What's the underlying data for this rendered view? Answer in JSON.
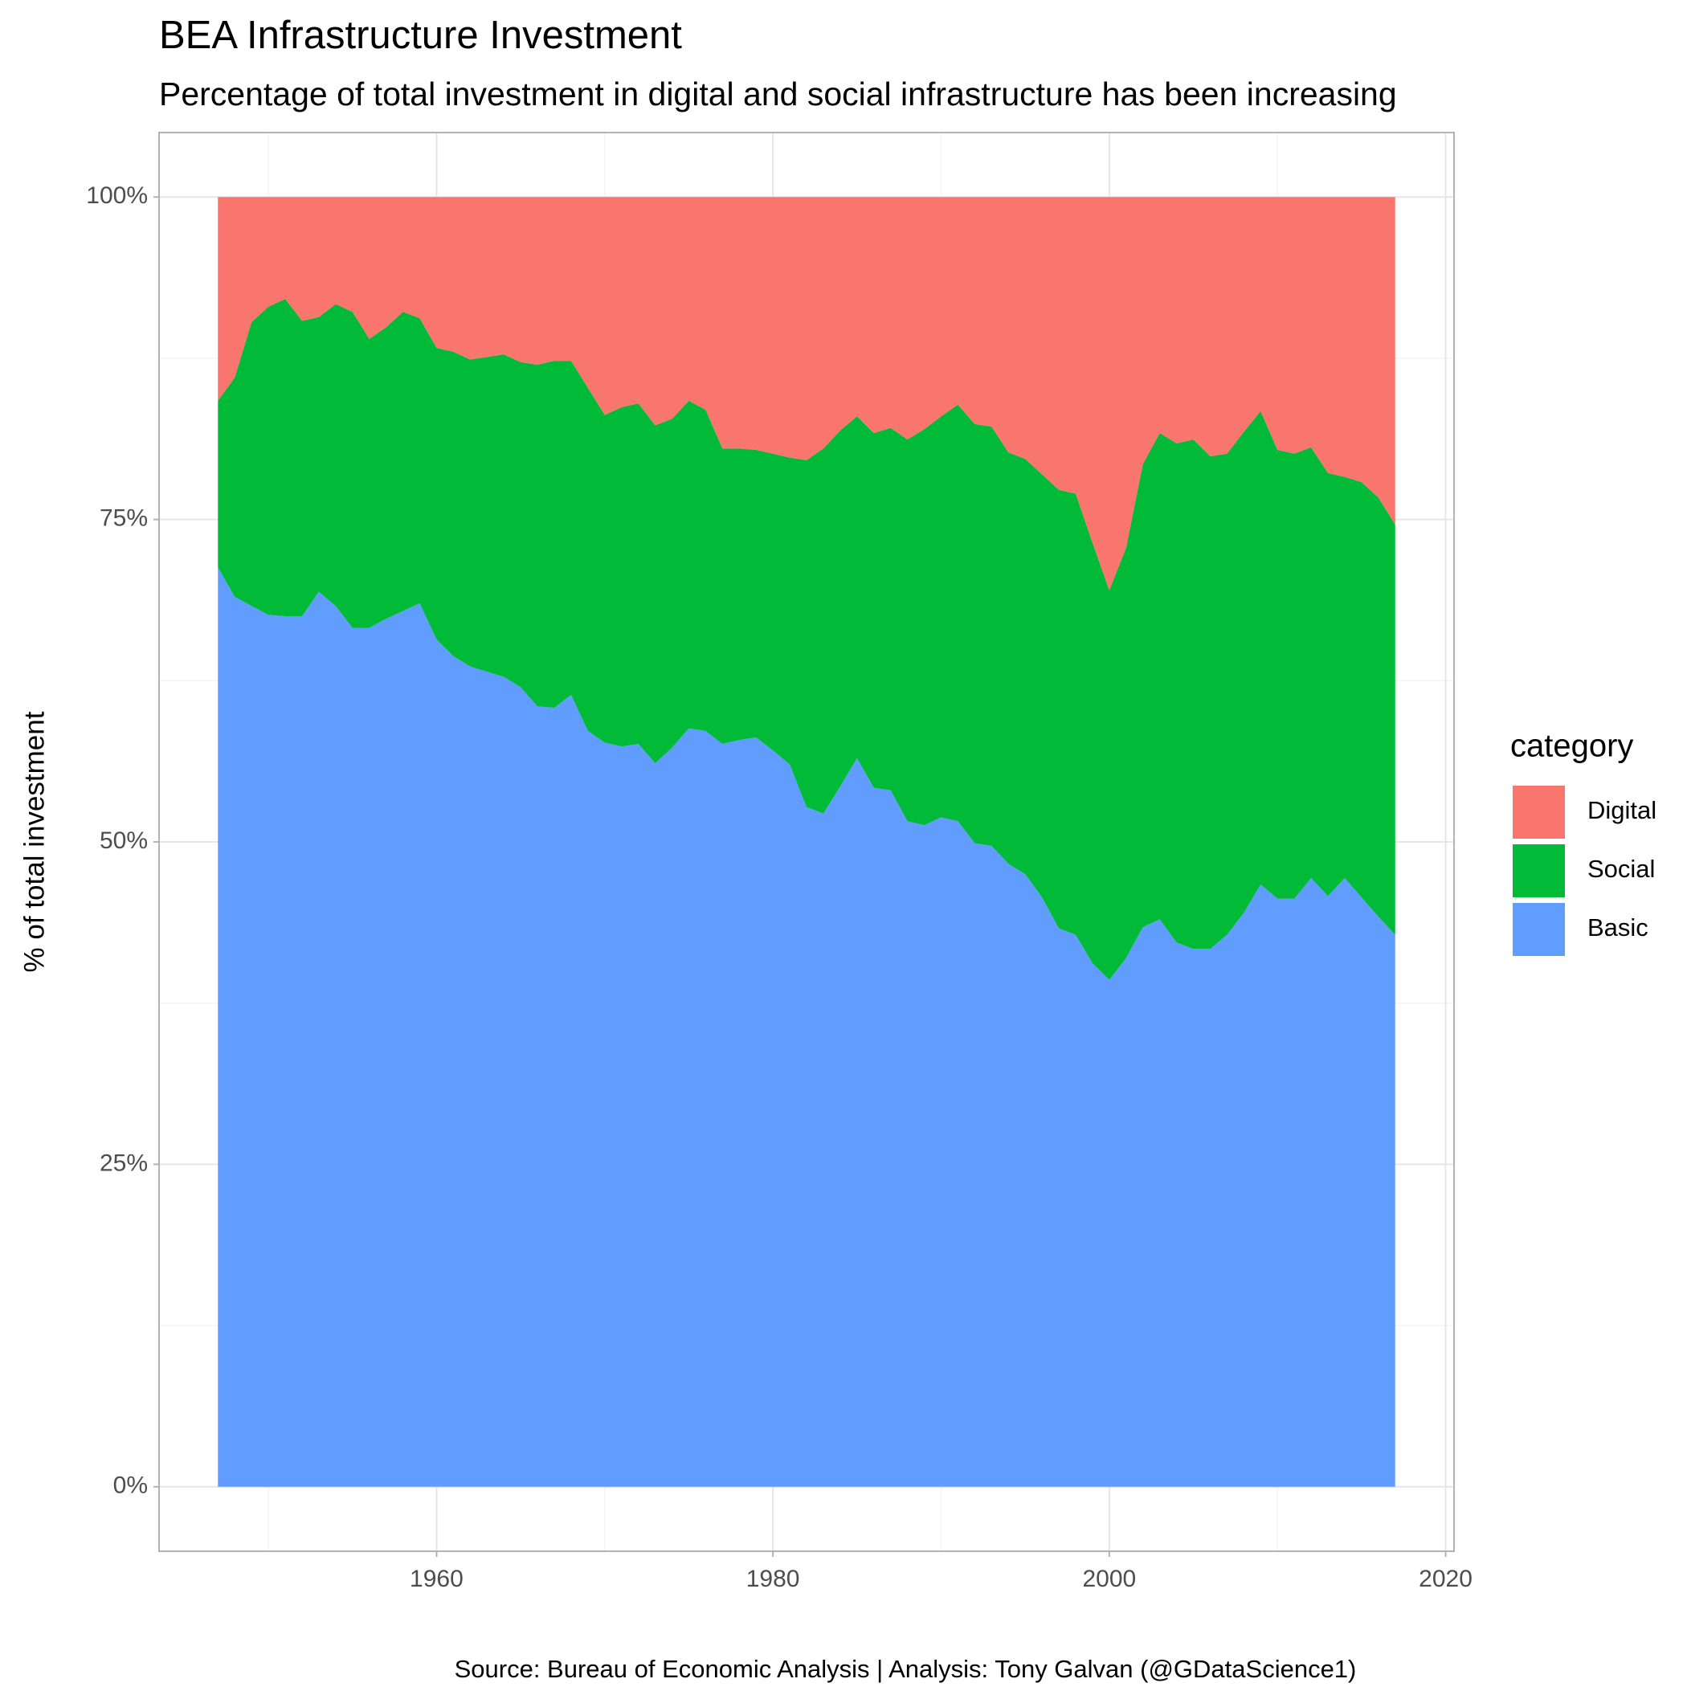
{
  "chart_data": {
    "type": "stacked_area",
    "title": "BEA Infrastructure Investment",
    "subtitle": "Percentage of total investment in digital and social infrastructure has been increasing",
    "y_label": "% of total investment",
    "caption": "Source: Bureau of Economic Analysis  |  Analysis: Tony Galvan (@GDataScience1)",
    "legend_title": "category",
    "legend": "right",
    "grid": true,
    "minor_grid": true,
    "x": [
      1947,
      1948,
      1949,
      1950,
      1951,
      1952,
      1953,
      1954,
      1955,
      1956,
      1957,
      1958,
      1959,
      1960,
      1961,
      1962,
      1963,
      1964,
      1965,
      1966,
      1967,
      1968,
      1969,
      1970,
      1971,
      1972,
      1973,
      1974,
      1975,
      1976,
      1977,
      1978,
      1979,
      1980,
      1981,
      1982,
      1983,
      1984,
      1985,
      1986,
      1987,
      1988,
      1989,
      1990,
      1991,
      1992,
      1993,
      1994,
      1995,
      1996,
      1997,
      1998,
      1999,
      2000,
      2001,
      2002,
      2003,
      2004,
      2005,
      2006,
      2007,
      2008,
      2009,
      2010,
      2011,
      2012,
      2013,
      2014,
      2015,
      2016,
      2017
    ],
    "series": [
      {
        "name": "Basic",
        "color": "#619CFF",
        "values": [
          71.3,
          69.0,
          68.3,
          67.6,
          67.5,
          67.5,
          69.4,
          68.3,
          66.6,
          66.6,
          67.3,
          67.9,
          68.5,
          65.7,
          64.4,
          63.6,
          63.2,
          62.8,
          62.0,
          60.5,
          60.4,
          61.4,
          58.6,
          57.7,
          57.4,
          57.6,
          56.1,
          57.3,
          58.8,
          58.6,
          57.6,
          57.9,
          58.1,
          57.1,
          56.0,
          52.7,
          52.2,
          54.3,
          56.5,
          54.2,
          54.0,
          51.6,
          51.3,
          51.9,
          51.6,
          49.9,
          49.7,
          48.3,
          47.5,
          45.7,
          43.3,
          42.8,
          40.6,
          39.3,
          41.0,
          43.4,
          44.0,
          42.2,
          41.7,
          41.7,
          42.8,
          44.5,
          46.7,
          45.6,
          45.6,
          47.2,
          45.8,
          47.2,
          45.7,
          44.2,
          42.8
        ]
      },
      {
        "name": "Social",
        "color": "#00BA38",
        "values": [
          12.9,
          17.0,
          22.0,
          23.9,
          24.6,
          22.9,
          21.3,
          23.4,
          24.5,
          22.4,
          22.6,
          23.2,
          22.1,
          22.6,
          23.6,
          23.8,
          24.4,
          25.0,
          25.2,
          26.5,
          26.9,
          25.9,
          26.6,
          25.4,
          26.3,
          26.4,
          26.2,
          25.5,
          25.4,
          24.9,
          22.9,
          22.6,
          22.3,
          23.0,
          23.8,
          26.9,
          28.3,
          27.6,
          26.5,
          27.5,
          28.1,
          29.6,
          30.7,
          31.1,
          32.3,
          32.5,
          32.5,
          31.9,
          32.2,
          32.8,
          34.0,
          34.2,
          32.6,
          30.2,
          31.8,
          35.9,
          37.7,
          38.7,
          39.5,
          38.2,
          37.3,
          37.3,
          36.7,
          34.8,
          34.5,
          33.4,
          32.8,
          31.1,
          32.2,
          32.5,
          31.8
        ]
      },
      {
        "name": "Digital",
        "color": "#F8766D",
        "values": [
          15.8,
          14.0,
          9.7,
          8.5,
          7.9,
          9.6,
          9.3,
          8.3,
          8.9,
          11.0,
          10.1,
          8.9,
          9.4,
          11.7,
          12.0,
          12.6,
          12.4,
          12.2,
          12.8,
          13.0,
          12.7,
          12.7,
          14.8,
          16.9,
          16.3,
          16.0,
          17.7,
          17.2,
          15.8,
          16.5,
          19.5,
          19.5,
          19.6,
          19.9,
          20.2,
          20.4,
          19.5,
          18.1,
          17.0,
          18.3,
          17.9,
          18.8,
          18.0,
          17.0,
          16.1,
          17.6,
          17.8,
          19.8,
          20.3,
          21.5,
          22.7,
          23.0,
          26.8,
          30.5,
          27.2,
          20.7,
          18.3,
          19.1,
          18.8,
          20.1,
          19.9,
          18.2,
          16.6,
          19.6,
          19.9,
          19.4,
          21.4,
          21.7,
          22.1,
          23.3,
          25.4
        ]
      }
    ],
    "xlim": [
      1943.5,
      2020.5
    ],
    "xticks": [
      1960,
      1980,
      2000,
      2020
    ],
    "ylim": [
      -5,
      105
    ],
    "yticks": [
      {
        "value": 0,
        "label": "0%"
      },
      {
        "value": 25,
        "label": "25%"
      },
      {
        "value": 50,
        "label": "50%"
      },
      {
        "value": 75,
        "label": "75%"
      },
      {
        "value": 100,
        "label": "100%"
      }
    ]
  }
}
